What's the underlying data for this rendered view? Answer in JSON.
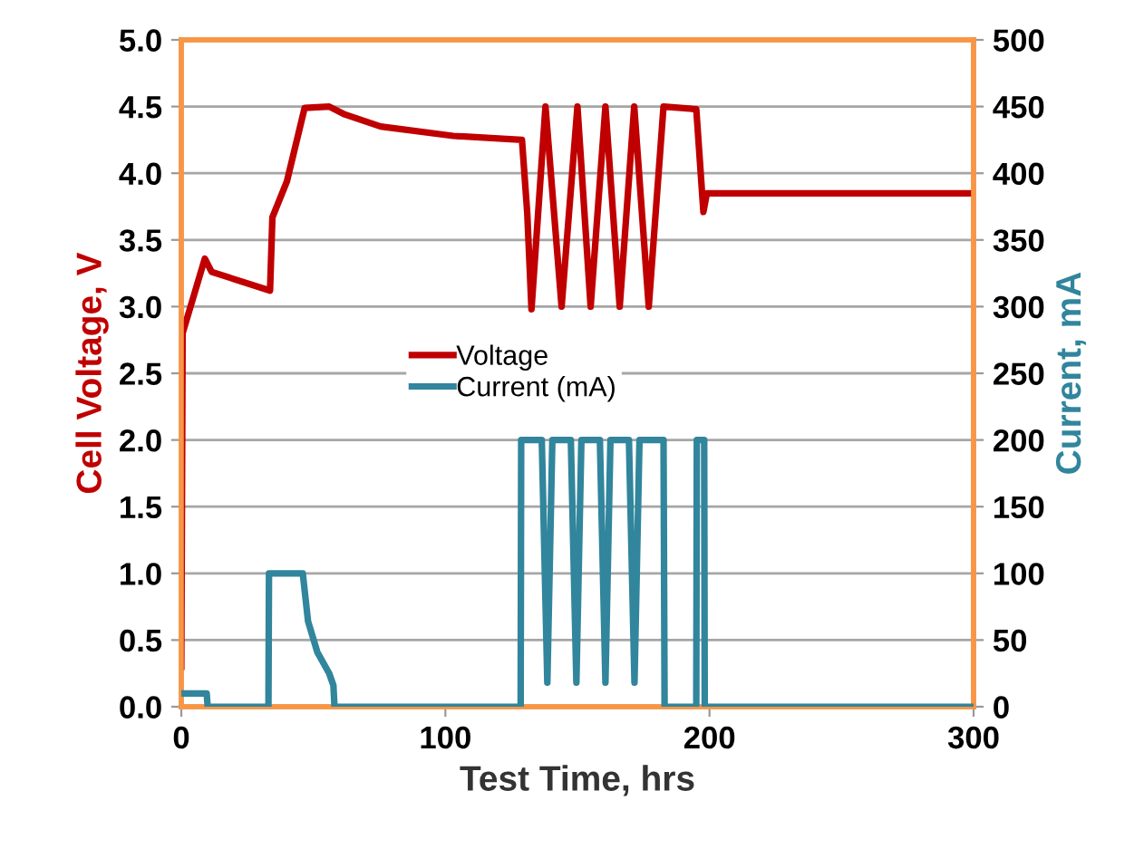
{
  "chart_data": {
    "type": "line",
    "xlabel": "Test Time, hrs",
    "ylabel": "Cell Voltage, V",
    "y2label": "Current, mA",
    "xlim": [
      0,
      300
    ],
    "xticks": [
      0,
      100,
      200,
      300
    ],
    "ylim": [
      0,
      5
    ],
    "yticks": [
      {
        "value": 0,
        "label": "0.0"
      },
      {
        "value": 0.5,
        "label": "0.5"
      },
      {
        "value": 1,
        "label": "1.0"
      },
      {
        "value": 1.5,
        "label": "1.5"
      },
      {
        "value": 2,
        "label": "2.0"
      },
      {
        "value": 2.5,
        "label": "2.5"
      },
      {
        "value": 3,
        "label": "3.0"
      },
      {
        "value": 3.5,
        "label": "3.5"
      },
      {
        "value": 4,
        "label": "4.0"
      },
      {
        "value": 4.5,
        "label": "4.5"
      },
      {
        "value": 5,
        "label": "5.0"
      }
    ],
    "y2lim": [
      0,
      500
    ],
    "y2ticks": [
      0,
      50,
      100,
      150,
      200,
      250,
      300,
      350,
      400,
      450,
      500
    ],
    "grid": "y",
    "legend": "center",
    "marker": "none",
    "line_style": "solid",
    "series": [
      {
        "name": "Voltage",
        "color": "#c00000",
        "axis": "y",
        "x": [
          0,
          0.5,
          8.9,
          11.5,
          33.6,
          34.5,
          40,
          46.7,
          56,
          62,
          75.5,
          103,
          129,
          131,
          132.6,
          137.9,
          144,
          150,
          155,
          160.6,
          166,
          171.5,
          177,
          182.6,
          195,
          197.7,
          199,
          300
        ],
        "values": [
          0.3,
          2.8,
          3.36,
          3.26,
          3.12,
          3.67,
          3.94,
          4.49,
          4.5,
          4.44,
          4.35,
          4.28,
          4.25,
          3.7,
          2.98,
          4.5,
          3.0,
          4.5,
          3.0,
          4.5,
          3.0,
          4.5,
          3.0,
          4.5,
          4.48,
          3.71,
          3.85,
          3.85
        ]
      },
      {
        "name": "Current (mA)",
        "color": "#31859c",
        "axis": "y2",
        "x": [
          0,
          9.6,
          10,
          33,
          33.2,
          46,
          48,
          51.5,
          56,
          57.6,
          58,
          128.5,
          128.7,
          136.5,
          138.6,
          140.5,
          147.5,
          149.6,
          151.5,
          158.5,
          160.6,
          162.5,
          169.5,
          171.6,
          173.5,
          182.6,
          183,
          195,
          195.2,
          198,
          198.2,
          300
        ],
        "values": [
          10,
          10,
          0,
          0,
          100,
          100,
          64,
          41,
          25,
          16,
          0,
          0,
          200,
          200,
          18,
          200,
          200,
          18,
          200,
          200,
          18,
          200,
          200,
          18,
          200,
          200,
          0,
          0,
          200,
          200,
          0,
          0
        ]
      }
    ]
  }
}
